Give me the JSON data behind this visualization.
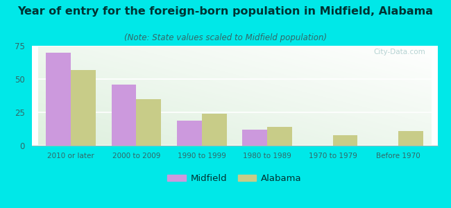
{
  "title": "Year of entry for the foreign-born population in Midfield, Alabama",
  "subtitle": "(Note: State values scaled to Midfield population)",
  "categories": [
    "2010 or later",
    "2000 to 2009",
    "1990 to 1999",
    "1980 to 1989",
    "1970 to 1979",
    "Before 1970"
  ],
  "midfield_values": [
    70,
    46,
    19,
    12,
    0,
    0
  ],
  "alabama_values": [
    57,
    35,
    24,
    14,
    8,
    11
  ],
  "midfield_color": "#cc99dd",
  "alabama_color": "#c8cc88",
  "background_color": "#00e8e8",
  "ylim": [
    0,
    75
  ],
  "yticks": [
    0,
    25,
    50,
    75
  ],
  "bar_width": 0.38,
  "title_fontsize": 11.5,
  "subtitle_fontsize": 8.5,
  "legend_labels": [
    "Midfield",
    "Alabama"
  ],
  "title_color": "#003333",
  "subtitle_color": "#336666",
  "tick_color": "#336666",
  "watermark": "City-Data.com"
}
